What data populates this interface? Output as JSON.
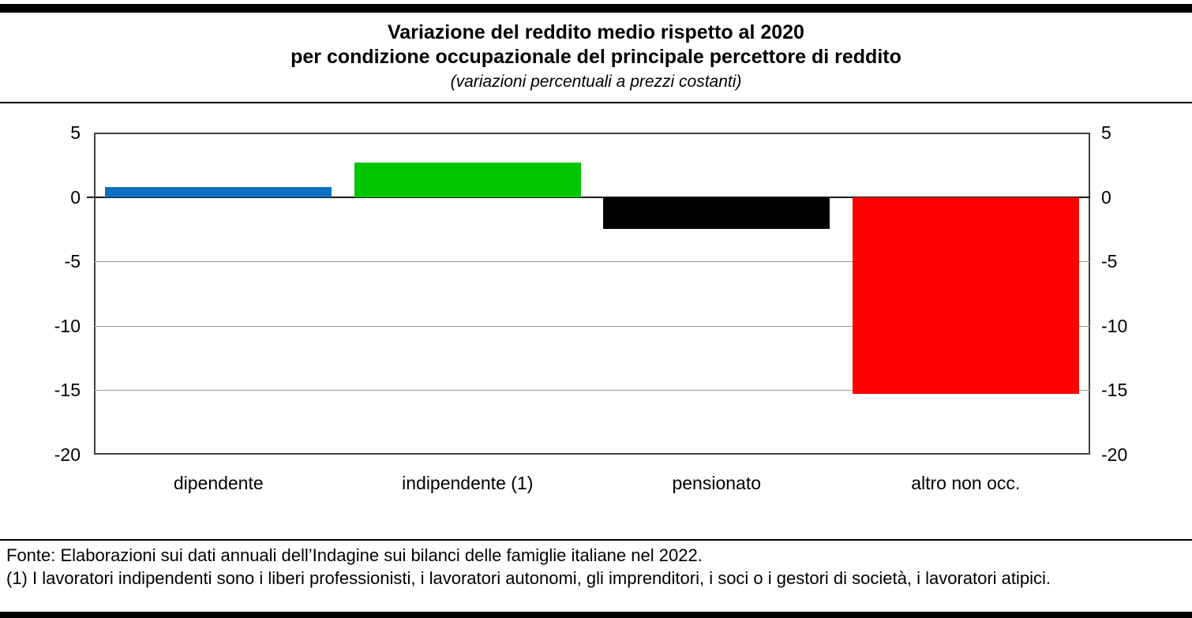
{
  "header": {
    "title_line1": "Variazione del reddito medio rispetto al 2020",
    "title_line2": "per condizione occupazionale del principale percettore di reddito",
    "subtitle": "(variazioni percentuali a prezzi costanti)"
  },
  "chart_data": {
    "type": "bar",
    "title": "Variazione del reddito medio rispetto al 2020 per condizione occupazionale del principale percettore di reddito",
    "subtitle": "(variazioni percentuali a prezzi costanti)",
    "categories": [
      "dipendente",
      "indipendente (1)",
      "pensionato",
      "altro non occ."
    ],
    "values": [
      0.8,
      2.7,
      -2.5,
      -15.3
    ],
    "bar_colors": [
      "#0D70C0",
      "#00C400",
      "#000000",
      "#FE0000"
    ],
    "unit": "percent",
    "ylim": [
      -20,
      5
    ],
    "yticks": [
      5,
      0,
      -5,
      -10,
      -15,
      -20
    ],
    "y_axis_labels_on_both_sides": true,
    "grid": true,
    "legend": "none",
    "xlabel": "",
    "ylabel": ""
  },
  "footer": {
    "source": "Fonte: Elaborazioni sui dati annuali dell’Indagine sui bilanci delle famiglie italiane nel 2022.",
    "note": "(1) I lavoratori indipendenti sono i liberi professionisti, i lavoratori autonomi, gli imprenditori, i soci o i gestori di società, i lavoratori atipici."
  },
  "colors": {
    "accent_bar": "#000000",
    "plot_border": "#404040",
    "gridline": "#999999",
    "zero_line": "#1a1a1a"
  }
}
